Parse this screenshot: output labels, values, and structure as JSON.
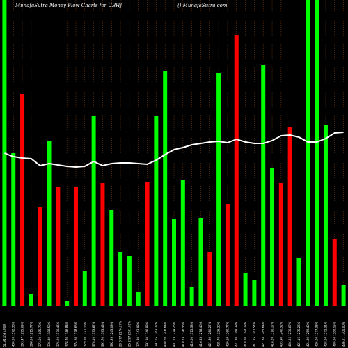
{
  "chart_data": {
    "type": "bar",
    "title": "MunafaSutra  Money Flow  Charts for UBHJ",
    "credit": "() MunafaSutra.com",
    "ylim": [
      0,
      440
    ],
    "colors": {
      "up": "#00ff00",
      "down": "#ff0000",
      "line": "#ffffff",
      "grid": "#8b4513",
      "background": "#000000"
    },
    "values": [
      440,
      220,
      305,
      18,
      142,
      238,
      172,
      7,
      171,
      50,
      274,
      177,
      138,
      78,
      72,
      20,
      178,
      274,
      338,
      125,
      181,
      27,
      127,
      78,
      335,
      147,
      390,
      48,
      38,
      346,
      198,
      177,
      258,
      70,
      440,
      440,
      260,
      96,
      31
    ],
    "directions": [
      "up",
      "up",
      "down",
      "up",
      "down",
      "up",
      "down",
      "up",
      "down",
      "up",
      "up",
      "down",
      "up",
      "up",
      "up",
      "up",
      "down",
      "up",
      "up",
      "up",
      "up",
      "up",
      "up",
      "down",
      "up",
      "down",
      "down",
      "up",
      "up",
      "up",
      "up",
      "down",
      "down",
      "up",
      "up",
      "up",
      "up",
      "down",
      "up"
    ],
    "line": [
      220,
      215,
      213,
      212,
      202,
      205,
      203,
      201,
      200,
      201,
      208,
      202,
      205,
      206,
      206,
      205,
      204,
      210,
      218,
      225,
      228,
      232,
      234,
      236,
      237,
      235,
      240,
      236,
      234,
      234,
      238,
      245,
      246,
      243,
      236,
      236,
      241,
      249,
      250
    ],
    "x_labels": [
      "51.94 1587.00%",
      "430.00 1572.38%",
      "393.47 1295.69%",
      "398.04 1215.77%",
      "373.60 1085.73%",
      "336.40 1188.53%",
      "376.20 1170.46%",
      "378.70 1146.84%",
      "374.60 1178.66%",
      "379.70 1121.15%",
      "378.10 1133.87%",
      "391.70 1193.43%",
      "392.95 1243.09%",
      "20 0.77 2176.27%",
      "25 2.97 2331.09%",
      "375.80 1243.98%",
      "392.30 1246.88%",
      "392.65 1263.27%",
      "400.20 1206.64%",
      "407.75 1274.25%",
      "410.65 1326.56%",
      "410.00 1315.38%",
      "416.85 1278.46%",
      "421.80 1280.27%",
      "425.70 1326.20%",
      "420.19 1260.77%",
      "421.40 1268.38%",
      "418.70 1294.23%",
      "411.25 1267.54%",
      "421.88 1285.64%",
      "418.20 1310.17%",
      "405.40 1240.52%",
      "406.36 1230.67%",
      "421.15 1235.26%",
      "424.80 1259.49%",
      "426.00 1277.38%",
      "428.00 1272.31%",
      "430.00 1290.15%",
      "436.21 1300.00%"
    ]
  }
}
